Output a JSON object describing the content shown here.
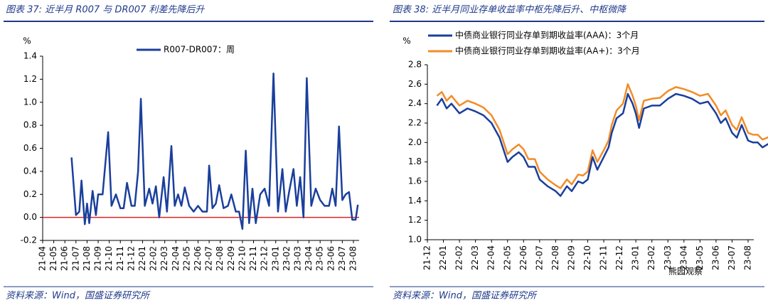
{
  "chart_data": [
    {
      "type": "line",
      "title": "图表 37: 近半月 R007 与 DR007 利差先降后升",
      "y_unit": "%",
      "source": "资料来源：Wind，国盛证券研究所",
      "categories": [
        "21-04",
        "21-05",
        "21-06",
        "21-07",
        "21-08",
        "21-09",
        "21-10",
        "21-11",
        "21-12",
        "22-01",
        "22-02",
        "22-03",
        "22-04",
        "22-05",
        "22-06",
        "22-07",
        "22-08",
        "22-09",
        "22-10",
        "22-11",
        "22-12",
        "23-01",
        "23-02",
        "23-03",
        "23-04",
        "23-05",
        "23-06",
        "23-07",
        "23-08"
      ],
      "ylim": [
        -0.2,
        1.4
      ],
      "yticks": [
        -0.2,
        {
          "value": 0,
          "label": "0.0"
        },
        0.2,
        0.4,
        0.6,
        0.8,
        {
          "value": 1,
          "label": "1.0"
        },
        1.2,
        1.4
      ],
      "reference_line": {
        "value": 0,
        "color": "#d62828"
      },
      "legend": "top",
      "series": [
        {
          "name": "R007-DR007：周",
          "color": "#1a3f9c",
          "x": [
            2.6,
            3.0,
            3.3,
            3.5,
            3.8,
            4.0,
            4.2,
            4.5,
            4.8,
            5.0,
            5.4,
            5.9,
            6.2,
            6.6,
            7.0,
            7.3,
            7.6,
            8.0,
            8.3,
            8.6,
            8.85,
            9.2,
            9.6,
            9.9,
            10.2,
            10.5,
            10.9,
            11.2,
            11.6,
            11.9,
            12.2,
            12.5,
            12.8,
            13.2,
            13.6,
            14.0,
            14.4,
            14.8,
            15.0,
            15.3,
            15.6,
            15.9,
            16.3,
            16.7,
            17.0,
            17.4,
            17.7,
            18.0,
            18.3,
            18.6,
            18.9,
            19.2,
            19.6,
            20.0,
            20.4,
            20.8,
            21.2,
            21.6,
            21.9,
            22.2,
            22.6,
            22.9,
            23.2,
            23.5,
            23.8,
            24.2,
            24.6,
            25.0,
            25.4,
            25.8,
            26.1,
            26.4,
            26.7,
            27.0,
            27.3,
            27.6,
            27.9,
            28.2,
            28.4
          ],
          "values": [
            0.52,
            0.02,
            0.05,
            0.32,
            -0.06,
            0.12,
            -0.05,
            0.23,
            0.02,
            0.2,
            0.2,
            0.74,
            0.1,
            0.2,
            0.08,
            0.08,
            0.3,
            0.1,
            0.1,
            0.4,
            1.03,
            0.1,
            0.25,
            0.12,
            0.27,
            0.0,
            0.35,
            0.05,
            0.62,
            0.1,
            0.2,
            0.1,
            0.26,
            0.1,
            0.05,
            0.1,
            0.05,
            0.05,
            0.45,
            0.08,
            0.12,
            0.28,
            0.08,
            0.1,
            0.2,
            0.05,
            0.05,
            -0.1,
            0.58,
            -0.05,
            0.25,
            -0.05,
            0.2,
            0.25,
            0.1,
            1.25,
            0.05,
            0.42,
            0.05,
            0.22,
            0.42,
            0.1,
            0.35,
            0.0,
            1.21,
            0.1,
            0.25,
            0.15,
            0.1,
            0.1,
            0.25,
            0.1,
            0.79,
            0.15,
            0.2,
            0.22,
            -0.02,
            -0.02,
            0.11
          ]
        }
      ]
    },
    {
      "type": "line",
      "title": "图表 38: 近半月同业存单收益率中枢先降后升、中枢微降",
      "y_unit": "%",
      "source": "资料来源：Wind，国盛证券研究所",
      "watermark": "熊园观察",
      "categories": [
        "21-12",
        "22-01",
        "22-02",
        "22-03",
        "22-04",
        "22-05",
        "22-06",
        "22-07",
        "22-08",
        "22-09",
        "22-10",
        "22-11",
        "22-12",
        "23-01",
        "23-02",
        "23-03",
        "23-04",
        "23-05",
        "23-06",
        "23-07",
        "23-08"
      ],
      "ylim": [
        1.0,
        2.8
      ],
      "yticks": [
        {
          "value": 1,
          "label": "1.0"
        },
        1.2,
        1.4,
        1.6,
        1.8,
        {
          "value": 2,
          "label": "2.0"
        },
        2.2,
        2.4,
        2.6,
        2.8
      ],
      "legend": "top",
      "series": [
        {
          "name": "中债商业银行同业存单到期收益率(AAA)：3个月",
          "color": "#1a3f9c",
          "x": [
            0.6,
            0.9,
            1.2,
            1.5,
            2.0,
            2.5,
            3.0,
            3.5,
            4.0,
            4.5,
            5.0,
            5.3,
            5.7,
            6.0,
            6.3,
            6.7,
            7.0,
            7.5,
            8.0,
            8.3,
            8.7,
            9.0,
            9.4,
            9.7,
            10.0,
            10.3,
            10.6,
            11.0,
            11.3,
            11.5,
            11.8,
            12.2,
            12.5,
            12.8,
            13.0,
            13.2,
            13.5,
            14.0,
            14.5,
            15.0,
            15.5,
            16.0,
            16.5,
            17.0,
            17.5,
            18.0,
            18.3,
            18.6,
            19.0,
            19.3,
            19.6,
            20.0,
            20.3,
            20.6,
            20.9,
            21.2,
            21.4
          ],
          "values": [
            2.38,
            2.45,
            2.35,
            2.4,
            2.3,
            2.35,
            2.32,
            2.28,
            2.2,
            2.05,
            1.8,
            1.85,
            1.9,
            1.85,
            1.75,
            1.75,
            1.62,
            1.55,
            1.5,
            1.45,
            1.55,
            1.5,
            1.6,
            1.58,
            1.62,
            1.85,
            1.72,
            1.85,
            1.95,
            2.1,
            2.25,
            2.3,
            2.5,
            2.4,
            2.3,
            2.15,
            2.35,
            2.38,
            2.38,
            2.45,
            2.5,
            2.48,
            2.45,
            2.4,
            2.42,
            2.3,
            2.2,
            2.25,
            2.1,
            2.05,
            2.18,
            2.02,
            2.0,
            2.0,
            1.95,
            1.98,
            2.0
          ]
        },
        {
          "name": "中债商业银行同业存单到期收益率(AA+)：3个月",
          "color": "#f28c28",
          "x": [
            0.6,
            0.9,
            1.2,
            1.5,
            2.0,
            2.5,
            3.0,
            3.5,
            4.0,
            4.5,
            5.0,
            5.3,
            5.7,
            6.0,
            6.3,
            6.7,
            7.0,
            7.5,
            8.0,
            8.3,
            8.7,
            9.0,
            9.4,
            9.7,
            10.0,
            10.3,
            10.6,
            11.0,
            11.3,
            11.5,
            11.8,
            12.2,
            12.5,
            12.8,
            13.0,
            13.2,
            13.5,
            14.0,
            14.5,
            15.0,
            15.5,
            16.0,
            16.5,
            17.0,
            17.5,
            18.0,
            18.3,
            18.6,
            19.0,
            19.3,
            19.6,
            20.0,
            20.3,
            20.6,
            20.9,
            21.2,
            21.4
          ],
          "values": [
            2.48,
            2.52,
            2.43,
            2.48,
            2.38,
            2.43,
            2.4,
            2.36,
            2.28,
            2.13,
            1.88,
            1.93,
            1.98,
            1.93,
            1.83,
            1.83,
            1.7,
            1.62,
            1.56,
            1.53,
            1.62,
            1.57,
            1.67,
            1.66,
            1.7,
            1.92,
            1.8,
            1.92,
            2.02,
            2.18,
            2.33,
            2.4,
            2.6,
            2.48,
            2.38,
            2.23,
            2.43,
            2.45,
            2.46,
            2.53,
            2.57,
            2.55,
            2.52,
            2.48,
            2.5,
            2.38,
            2.28,
            2.33,
            2.18,
            2.13,
            2.26,
            2.1,
            2.08,
            2.08,
            2.03,
            2.05,
            2.07
          ]
        }
      ]
    }
  ]
}
